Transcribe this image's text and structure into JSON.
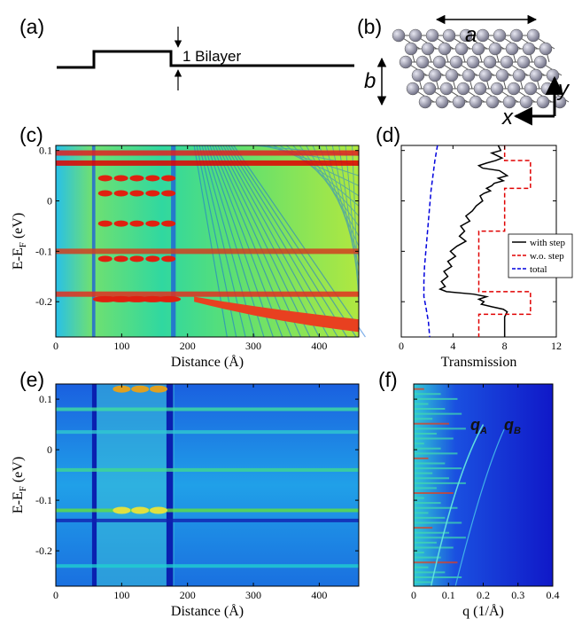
{
  "panels": {
    "a": {
      "label": "(a)",
      "annotation": "1 Bilayer"
    },
    "b": {
      "label": "(b)",
      "lattice_a": "a",
      "lattice_b": "b",
      "axis_x": "x",
      "axis_y": "y"
    },
    "c": {
      "label": "(c)"
    },
    "d": {
      "label": "(d)"
    },
    "e": {
      "label": "(e)"
    },
    "f": {
      "label": "(f)",
      "qA": "q",
      "qA_sub": "A",
      "qB": "q",
      "qB_sub": "B"
    }
  },
  "colors": {
    "with_step": "#000000",
    "wo_step": "#e00000",
    "total": "#0000dd",
    "map_low": "#1010c8",
    "map_mid": "#20d060",
    "map_high": "#e00000"
  },
  "chart_data": [
    {
      "panel": "c",
      "type": "heatmap",
      "xlabel": "Distance (Å)",
      "ylabel_main": "E-E",
      "ylabel_sub": "F",
      "ylabel_tail": " (eV)",
      "xlim": [
        0,
        460
      ],
      "ylim": [
        -0.27,
        0.11
      ],
      "xticks": [
        0,
        100,
        200,
        300,
        400
      ],
      "yticks": [
        0.1,
        0,
        -0.1,
        -0.2
      ],
      "step_region": [
        55,
        180
      ]
    },
    {
      "panel": "d",
      "type": "line",
      "xlabel": "Transmission",
      "xlim": [
        0,
        12
      ],
      "ylim": [
        -0.27,
        0.11
      ],
      "xticks": [
        0,
        4,
        8,
        12
      ],
      "legend": "right",
      "series": [
        {
          "name": "with step",
          "style": "solid",
          "points": [
            [
              7.5,
              0.11
            ],
            [
              7.7,
              0.1
            ],
            [
              7.0,
              0.095
            ],
            [
              7.8,
              0.085
            ],
            [
              7.3,
              0.08
            ],
            [
              6.6,
              0.075
            ],
            [
              6.0,
              0.07
            ],
            [
              6.3,
              0.065
            ],
            [
              7.6,
              0.06
            ],
            [
              7.9,
              0.055
            ],
            [
              8.2,
              0.05
            ],
            [
              7.5,
              0.045
            ],
            [
              7.9,
              0.04
            ],
            [
              7.2,
              0.035
            ],
            [
              7.0,
              0.03
            ],
            [
              6.6,
              0.025
            ],
            [
              6.9,
              0.02
            ],
            [
              6.4,
              0.015
            ],
            [
              6.1,
              0.01
            ],
            [
              6.3,
              0.0
            ],
            [
              5.8,
              -0.01
            ],
            [
              5.5,
              -0.02
            ],
            [
              5.0,
              -0.03
            ],
            [
              5.3,
              -0.04
            ],
            [
              4.6,
              -0.05
            ],
            [
              4.9,
              -0.06
            ],
            [
              4.5,
              -0.07
            ],
            [
              5.0,
              -0.08
            ],
            [
              4.3,
              -0.09
            ],
            [
              3.8,
              -0.1
            ],
            [
              4.2,
              -0.11
            ],
            [
              3.6,
              -0.12
            ],
            [
              3.9,
              -0.13
            ],
            [
              3.3,
              -0.14
            ],
            [
              3.6,
              -0.15
            ],
            [
              3.1,
              -0.16
            ],
            [
              3.4,
              -0.17
            ],
            [
              3.0,
              -0.175
            ],
            [
              3.5,
              -0.18
            ],
            [
              5.6,
              -0.185
            ],
            [
              6.6,
              -0.19
            ],
            [
              6.0,
              -0.195
            ],
            [
              6.4,
              -0.2
            ],
            [
              6.2,
              -0.205
            ],
            [
              7.0,
              -0.21
            ],
            [
              7.9,
              -0.215
            ],
            [
              8.2,
              -0.22
            ],
            [
              8.0,
              -0.23
            ],
            [
              8.0,
              -0.27
            ]
          ]
        },
        {
          "name": "w.o. step",
          "style": "dashed",
          "points": [
            [
              8,
              0.11
            ],
            [
              8,
              0.08
            ],
            [
              10,
              0.08
            ],
            [
              10,
              0.025
            ],
            [
              8,
              0.025
            ],
            [
              8,
              -0.06
            ],
            [
              6,
              -0.06
            ],
            [
              6,
              -0.18
            ],
            [
              10,
              -0.18
            ],
            [
              10,
              -0.225
            ],
            [
              6,
              -0.225
            ],
            [
              6,
              -0.27
            ]
          ]
        },
        {
          "name": "total",
          "style": "dashed",
          "points": [
            [
              2.8,
              0.11
            ],
            [
              2.6,
              0.08
            ],
            [
              2.45,
              0.05
            ],
            [
              2.3,
              0.02
            ],
            [
              2.2,
              -0.01
            ],
            [
              2.1,
              -0.04
            ],
            [
              2.0,
              -0.07
            ],
            [
              1.9,
              -0.1
            ],
            [
              1.8,
              -0.13
            ],
            [
              1.75,
              -0.16
            ],
            [
              1.75,
              -0.19
            ],
            [
              1.9,
              -0.21
            ],
            [
              2.1,
              -0.24
            ],
            [
              2.2,
              -0.27
            ]
          ]
        }
      ]
    },
    {
      "panel": "e",
      "type": "heatmap",
      "xlabel": "Distance (Å)",
      "ylabel_main": "E-E",
      "ylabel_sub": "F",
      "ylabel_tail": " (eV)",
      "xlim": [
        0,
        460
      ],
      "ylim": [
        -0.27,
        0.13
      ],
      "xticks": [
        0,
        100,
        200,
        300,
        400
      ],
      "yticks": [
        0.1,
        0,
        -0.1,
        -0.2
      ]
    },
    {
      "panel": "f",
      "type": "heatmap",
      "xlabel": "q (1/Å)",
      "xlim": [
        0,
        0.4
      ],
      "ylim": [
        -0.27,
        0.13
      ],
      "xticks": [
        "0",
        "0.1",
        "0.2",
        "0.3",
        "0.4"
      ]
    }
  ]
}
